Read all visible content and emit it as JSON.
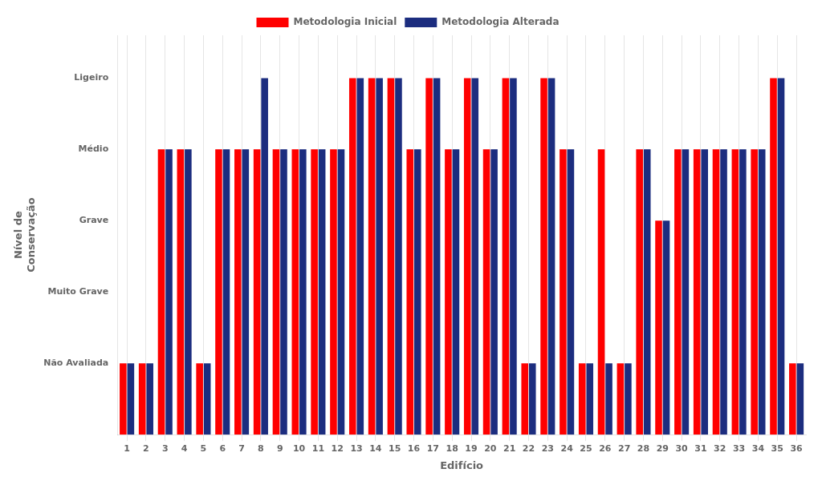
{
  "chart_data": {
    "type": "bar",
    "categories": [
      "1",
      "2",
      "3",
      "4",
      "5",
      "6",
      "7",
      "8",
      "9",
      "10",
      "11",
      "12",
      "13",
      "14",
      "15",
      "16",
      "17",
      "18",
      "19",
      "20",
      "21",
      "22",
      "23",
      "24",
      "25",
      "26",
      "27",
      "28",
      "29",
      "30",
      "31",
      "32",
      "33",
      "34",
      "35",
      "36"
    ],
    "series": [
      {
        "name": "Metodologia Inicial",
        "color": "#FF0000",
        "values": [
          1,
          1,
          4,
          4,
          1,
          4,
          4,
          4,
          4,
          4,
          4,
          4,
          5,
          5,
          5,
          4,
          5,
          4,
          5,
          4,
          5,
          1,
          5,
          4,
          1,
          4,
          1,
          4,
          3,
          4,
          4,
          4,
          4,
          4,
          5,
          1
        ]
      },
      {
        "name": "Metodologia Alterada",
        "color": "#1C2D7F",
        "values": [
          1,
          1,
          4,
          4,
          1,
          4,
          4,
          5,
          4,
          4,
          4,
          4,
          5,
          5,
          5,
          4,
          5,
          4,
          5,
          4,
          5,
          1,
          5,
          4,
          1,
          1,
          1,
          4,
          3,
          4,
          4,
          4,
          4,
          4,
          5,
          1
        ]
      }
    ],
    "xlabel": "Edifício",
    "ylabel": "Nível de\nConservação",
    "ylim": [
      0,
      5.6
    ],
    "yticks": [
      {
        "value": 1,
        "label": "Não Avaliada"
      },
      {
        "value": 2,
        "label": "Muito Grave"
      },
      {
        "value": 3,
        "label": "Grave"
      },
      {
        "value": 4,
        "label": "Médio"
      },
      {
        "value": 5,
        "label": "Ligeiro"
      }
    ],
    "grid": "x",
    "legend": "top"
  }
}
